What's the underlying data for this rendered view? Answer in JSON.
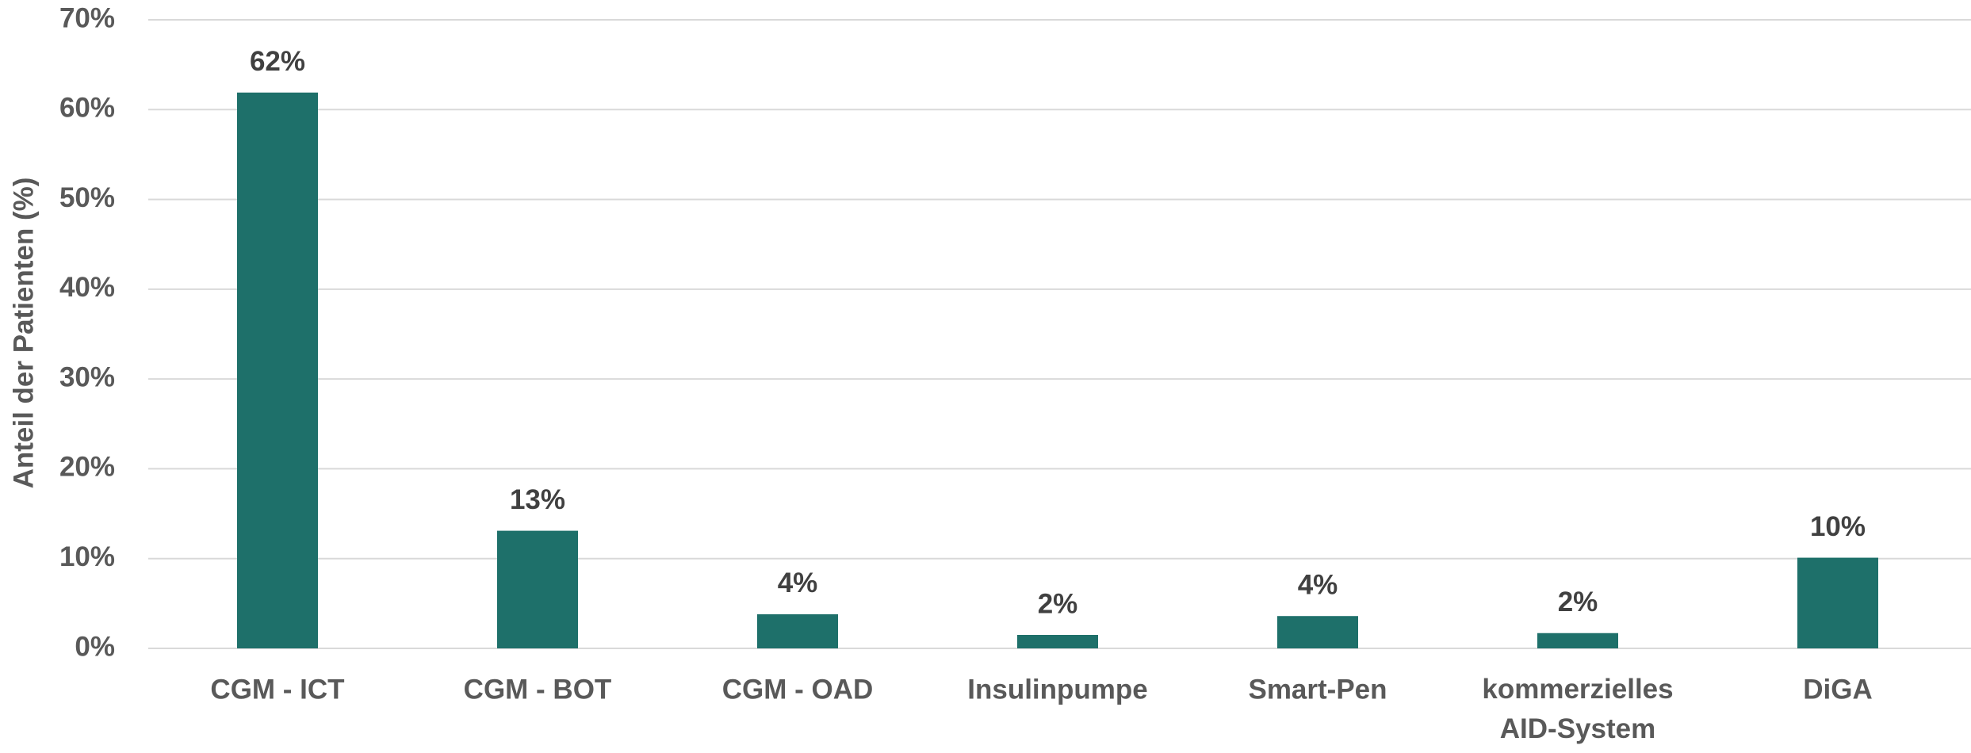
{
  "chart_data": {
    "type": "bar",
    "y_axis_label": "Anteil der Patienten (%)",
    "categories": [
      "CGM - ICT",
      "CGM - BOT",
      "CGM - OAD",
      "Insulinpumpe",
      "Smart-Pen",
      "kommerzielles\nAID-System",
      "DiGA"
    ],
    "values": [
      61.9,
      13.1,
      3.8,
      1.5,
      3.6,
      1.7,
      10.1
    ],
    "value_labels": [
      "62%",
      "13%",
      "4%",
      "2%",
      "4%",
      "2%",
      "10%"
    ],
    "color": "#1e706a",
    "ylim": [
      0,
      70
    ],
    "yticks": [
      {
        "value": 0,
        "label": "0%"
      },
      {
        "value": 10,
        "label": "10%"
      },
      {
        "value": 20,
        "label": "20%"
      },
      {
        "value": 30,
        "label": "30%"
      },
      {
        "value": 40,
        "label": "40%"
      },
      {
        "value": 50,
        "label": "50%"
      },
      {
        "value": 60,
        "label": "60%"
      },
      {
        "value": 70,
        "label": "70%"
      }
    ],
    "grid": true
  }
}
